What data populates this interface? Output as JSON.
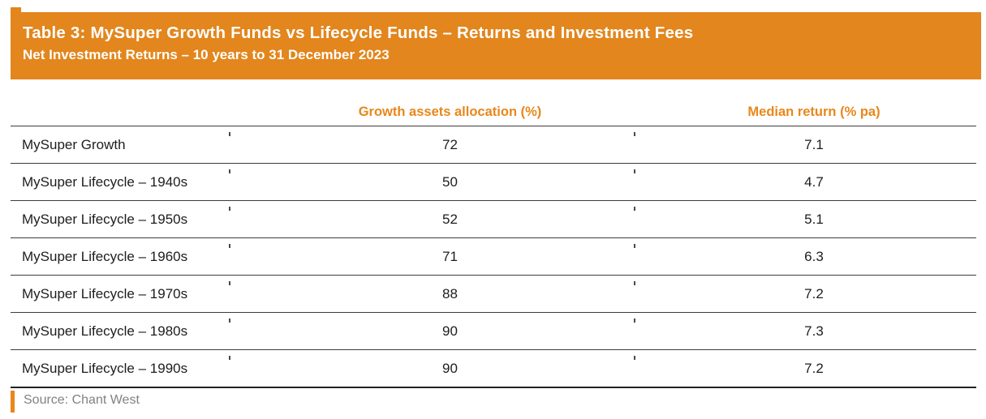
{
  "banner": {
    "title": "Table 3: MySuper Growth Funds vs Lifecycle Funds – Returns and Investment Fees",
    "subtitle": "Net Investment Returns – 10 years to 31 December 2023"
  },
  "table": {
    "columns": {
      "fund": "",
      "growth_assets": "Growth assets allocation (%)",
      "median_return": "Median return (% pa)"
    },
    "rows": [
      {
        "label": "MySuper Growth",
        "growth_assets": "72",
        "median_return": "7.1"
      },
      {
        "label": "MySuper Lifecycle – 1940s",
        "growth_assets": "50",
        "median_return": "4.7"
      },
      {
        "label": "MySuper Lifecycle – 1950s",
        "growth_assets": "52",
        "median_return": "5.1"
      },
      {
        "label": "MySuper Lifecycle – 1960s",
        "growth_assets": "71",
        "median_return": "6.3"
      },
      {
        "label": "MySuper Lifecycle – 1970s",
        "growth_assets": "88",
        "median_return": "7.2"
      },
      {
        "label": "MySuper Lifecycle – 1980s",
        "growth_assets": "90",
        "median_return": "7.3"
      },
      {
        "label": "MySuper Lifecycle – 1990s",
        "growth_assets": "90",
        "median_return": "7.2"
      }
    ]
  },
  "source": {
    "label": "Source: Chant West"
  },
  "colors": {
    "banner_bg": "#e2861d",
    "banner_text": "#ffffff",
    "column_header_text": "#e8871a",
    "body_text": "#1d1d1d",
    "rule_line": "#3c3c3c",
    "bottom_rule": "#222222",
    "source_text": "#828282",
    "source_accent_bar": "#e8871a"
  },
  "chart_data": {
    "type": "table",
    "title": "Table 3: MySuper Growth Funds vs Lifecycle Funds – Returns and Investment Fees",
    "subtitle": "Net Investment Returns – 10 years to 31 December 2023",
    "categories": [
      "MySuper Growth",
      "MySuper Lifecycle – 1940s",
      "MySuper Lifecycle – 1950s",
      "MySuper Lifecycle – 1960s",
      "MySuper Lifecycle – 1970s",
      "MySuper Lifecycle – 1980s",
      "MySuper Lifecycle – 1990s"
    ],
    "series": [
      {
        "name": "Growth assets allocation (%)",
        "values": [
          72,
          50,
          52,
          71,
          88,
          90,
          90
        ]
      },
      {
        "name": "Median return (% pa)",
        "values": [
          7.1,
          4.7,
          5.1,
          6.3,
          7.2,
          7.3,
          7.2
        ]
      }
    ],
    "source": "Source: Chant West"
  }
}
